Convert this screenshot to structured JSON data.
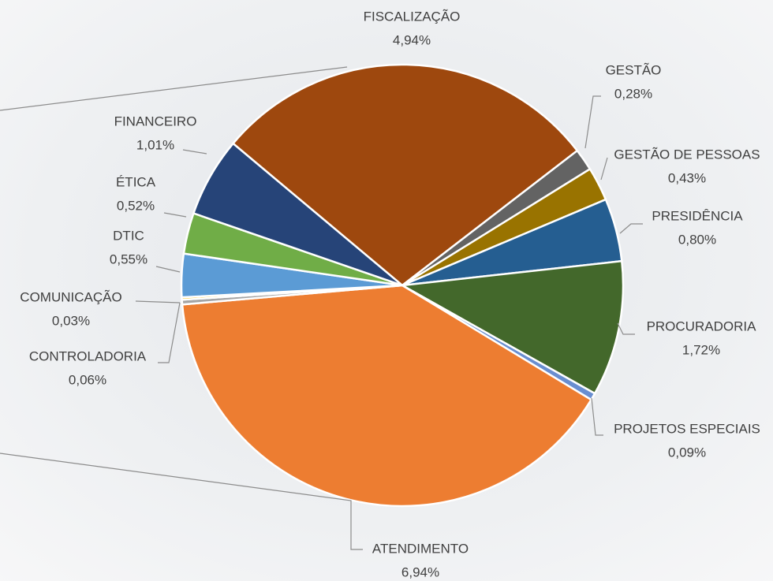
{
  "chart_data": {
    "type": "pie",
    "categories": [
      "FISCALIZAÇÃO",
      "GESTÃO",
      "GESTÃO DE PESSOAS",
      "PRESIDÊNCIA",
      "PROCURADORIA",
      "PROJETOS ESPECIAIS",
      "ATENDIMENTO",
      "CONTROLADORIA",
      "COMUNICAÇÃO",
      "DTIC",
      "ÉTICA",
      "FINANCEIRO"
    ],
    "values": [
      4.94,
      0.28,
      0.43,
      0.8,
      1.72,
      0.09,
      6.94,
      0.06,
      0.03,
      0.55,
      0.52,
      1.01
    ],
    "value_labels": [
      "4,94%",
      "0,28%",
      "0,43%",
      "0,80%",
      "1,72%",
      "0,09%",
      "6,94%",
      "0,06%",
      "0,03%",
      "0,55%",
      "0,52%",
      "1,01%"
    ],
    "colors": [
      "#9e480e",
      "#636363",
      "#997300",
      "#255e91",
      "#43682b",
      "#698ed0",
      "#ed7d31",
      "#a5a5a5",
      "#ffc000",
      "#5b9bd5",
      "#70ad47",
      "#264478"
    ]
  }
}
